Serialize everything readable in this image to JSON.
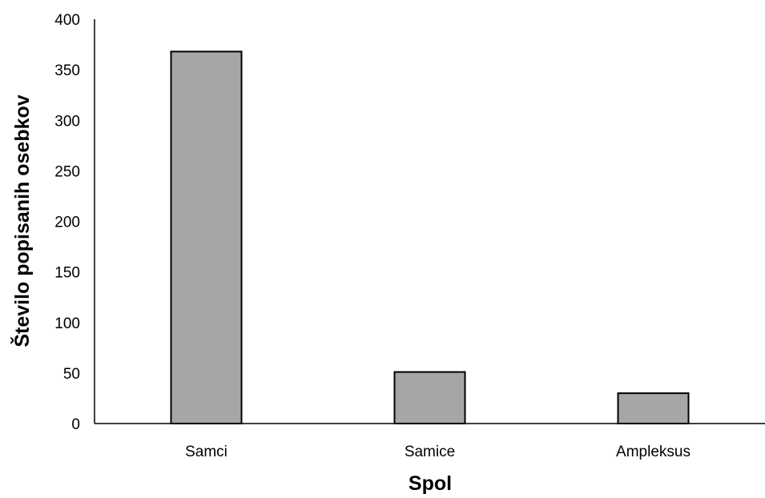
{
  "chart_data": {
    "type": "bar",
    "title": "",
    "xlabel": "Spol",
    "ylabel": "Število popisanih osebkov",
    "categories": [
      "Samci",
      "Samice",
      "Ampleksus"
    ],
    "values": [
      368,
      51,
      30
    ],
    "ylim": [
      0,
      400
    ],
    "yticks": [
      0,
      50,
      100,
      150,
      200,
      250,
      300,
      350,
      400
    ],
    "grid": false,
    "legend": "none",
    "bar_color": "#a6a6a6",
    "bar_edge_color": "#000000"
  }
}
